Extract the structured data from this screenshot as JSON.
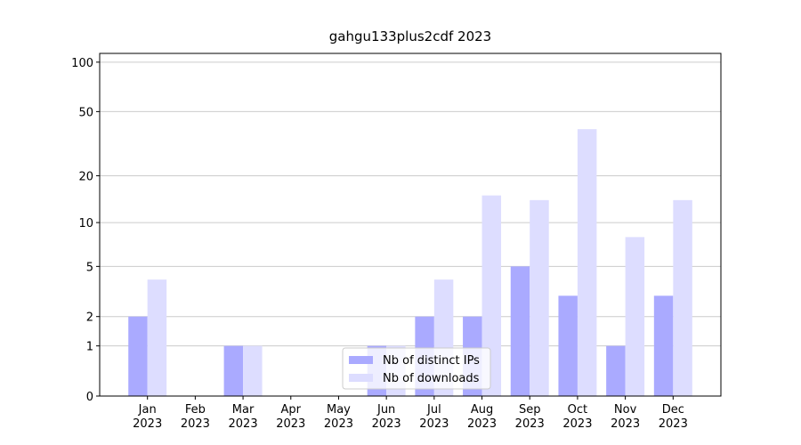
{
  "chart_data": {
    "type": "bar",
    "title": "gahgu133plus2cdf 2023",
    "categories": [
      "Jan\n2023",
      "Feb\n2023",
      "Mar\n2023",
      "Apr\n2023",
      "May\n2023",
      "Jun\n2023",
      "Jul\n2023",
      "Aug\n2023",
      "Sep\n2023",
      "Oct\n2023",
      "Nov\n2023",
      "Dec\n2023"
    ],
    "series": [
      {
        "name": "Nb of distinct IPs",
        "color": "#aaaaff",
        "values": [
          2,
          0,
          1,
          0,
          0,
          1,
          2,
          2,
          5,
          3,
          1,
          3
        ]
      },
      {
        "name": "Nb of downloads",
        "color": "#ddddff",
        "values": [
          4,
          0,
          1,
          0,
          0,
          1,
          4,
          15,
          14,
          39,
          8,
          14
        ]
      }
    ],
    "y_scale": "symlog",
    "ylim": [
      0,
      113
    ],
    "yticks": [
      0,
      1,
      2,
      5,
      10,
      20,
      50,
      100
    ],
    "grid": true,
    "legend": "lower center"
  }
}
